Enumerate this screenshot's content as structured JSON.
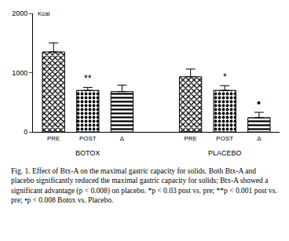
{
  "chart_data": {
    "type": "bar",
    "y_label": "Kcal",
    "categories": [
      "PRE",
      "POST",
      "Δ",
      null,
      "PRE",
      "POST",
      "Δ"
    ],
    "values": [
      1350,
      700,
      680,
      null,
      930,
      700,
      240
    ],
    "errors": [
      150,
      50,
      110,
      null,
      130,
      80,
      90
    ],
    "value_marks": [
      null,
      "**",
      null,
      null,
      null,
      "*",
      "•"
    ],
    "group_labels": [
      "BOTOX",
      "PLACEBO"
    ],
    "color": "#000000",
    "ylim": [
      0,
      2000
    ],
    "yticks": [
      0,
      1000,
      2000
    ],
    "grid": false,
    "caption": "Fig. 1. Effect of Btx-A on the maximal gastric capacity for solids. Both Btx-A and placebo significantly reduced the maximal gastric capacity for solids; Btx-A showed a significant advantage (p < 0.008) on placebo. *p < 0.03 post vs. pre; **p < 0.001 post vs. pre; •p < 0.008 Botox vs. Placebo."
  }
}
